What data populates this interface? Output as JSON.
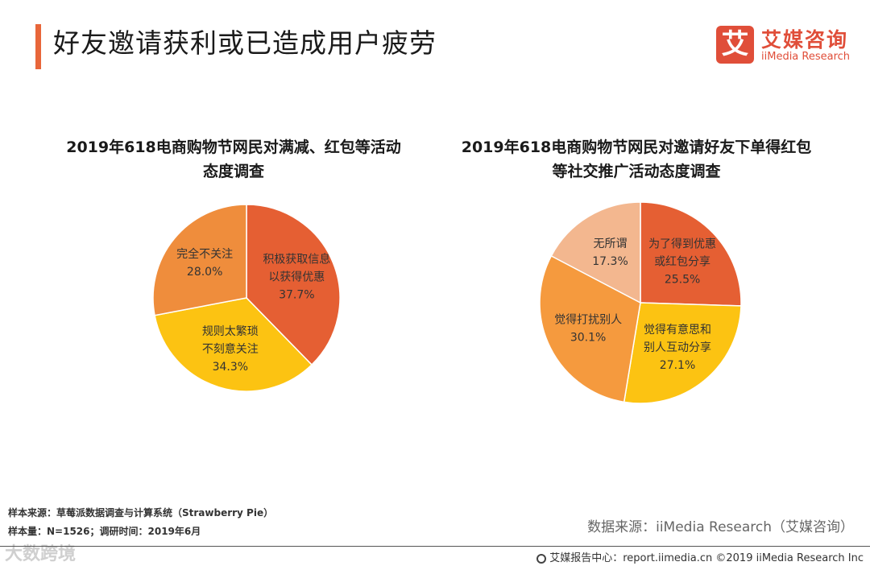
{
  "header": {
    "title": "好友邀请获利或已造成用户疲劳"
  },
  "logo": {
    "mark": "艾",
    "name_cn": "艾媒咨询",
    "name_en": "iiMedia Research"
  },
  "chart_data": [
    {
      "type": "pie",
      "title": "2019年618电商购物节网民对满减、红包等活动态度调查",
      "title_lines": [
        "2019年618电商购物节网民对满减、红包等活动",
        "态度调查"
      ],
      "start_angle_deg": 0,
      "slices": [
        {
          "label": "积极获取信息以获得优惠",
          "label_lines": [
            "积极获取信息",
            "以获得优惠"
          ],
          "value": 37.7,
          "value_text": "37.7%",
          "color": "#e55f33"
        },
        {
          "label": "规则太繁琐不刻意关注",
          "label_lines": [
            "规则太繁琐",
            "不刻意关注"
          ],
          "value": 34.3,
          "value_text": "34.3%",
          "color": "#fcc312"
        },
        {
          "label": "完全不关注",
          "label_lines": [
            "完全不关注"
          ],
          "value": 28.0,
          "value_text": "28.0%",
          "color": "#ef8d3c"
        }
      ]
    },
    {
      "type": "pie",
      "title": "2019年618电商购物节网民对邀请好友下单得红包等社交推广活动态度调查",
      "title_lines": [
        "2019年618电商购物节网民对邀请好友下单得红包",
        "等社交推广活动态度调查"
      ],
      "start_angle_deg": 0,
      "slices": [
        {
          "label": "为了得到优惠或红包分享",
          "label_lines": [
            "为了得到优惠",
            "或红包分享"
          ],
          "value": 25.5,
          "value_text": "25.5%",
          "color": "#e55f33"
        },
        {
          "label": "觉得有意思和别人互动分享",
          "label_lines": [
            "觉得有意思和",
            "别人互动分享"
          ],
          "value": 27.1,
          "value_text": "27.1%",
          "color": "#fcc312"
        },
        {
          "label": "觉得打扰别人",
          "label_lines": [
            "觉得打扰别人"
          ],
          "value": 30.1,
          "value_text": "30.1%",
          "color": "#f59a3e"
        },
        {
          "label": "无所谓",
          "label_lines": [
            "无所谓"
          ],
          "value": 17.3,
          "value_text": "17.3%",
          "color": "#f3b78f"
        }
      ]
    }
  ],
  "footnotes": {
    "source": "样本来源：草莓派数据调查与计算系统（Strawberry  Pie）",
    "sample": "样本量：N=1526；调研时间：2019年6月"
  },
  "data_source": "数据来源：iiMedia Research（艾媒咨询）",
  "watermark": "大数跨境",
  "footer": {
    "text": "艾媒报告中心：report.iimedia.cn  ©2019  iiMedia Research  Inc"
  }
}
